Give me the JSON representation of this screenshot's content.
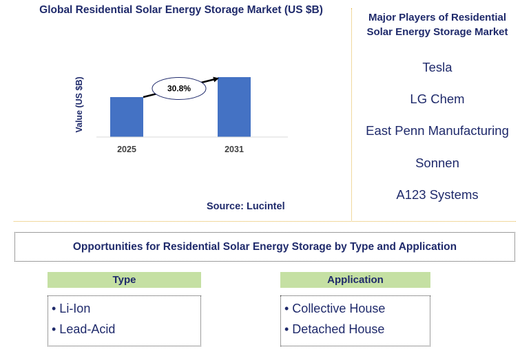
{
  "chart_data": {
    "type": "bar",
    "title": "Global Residential Solar Energy Storage Market (US $B)",
    "ylabel": "Value (US $B)",
    "xlabel": "",
    "categories": [
      "2025",
      "2031"
    ],
    "values": [
      0.58,
      0.87
    ],
    "ylim": [
      0,
      1
    ],
    "annotation": "30.8%",
    "bar_color": "#4472c4",
    "grid": false
  },
  "source": "Source: Lucintel",
  "players": {
    "title": "Major Players of Residential Solar Energy Storage Market",
    "items": [
      "Tesla",
      "LG Chem",
      "East Penn Manufacturing",
      "Sonnen",
      "A123 Systems"
    ]
  },
  "opportunities": {
    "title": "Opportunities for Residential Solar Energy Storage by Type and Application",
    "type": {
      "header": "Type",
      "items": [
        "• Li-Ion",
        "• Lead-Acid"
      ]
    },
    "application": {
      "header": "Application",
      "items": [
        "• Collective House",
        "• Detached House"
      ]
    }
  },
  "colors": {
    "text": "#1f2a6b",
    "accent": "#e3b23c",
    "header_bg": "#c5e0a3"
  }
}
